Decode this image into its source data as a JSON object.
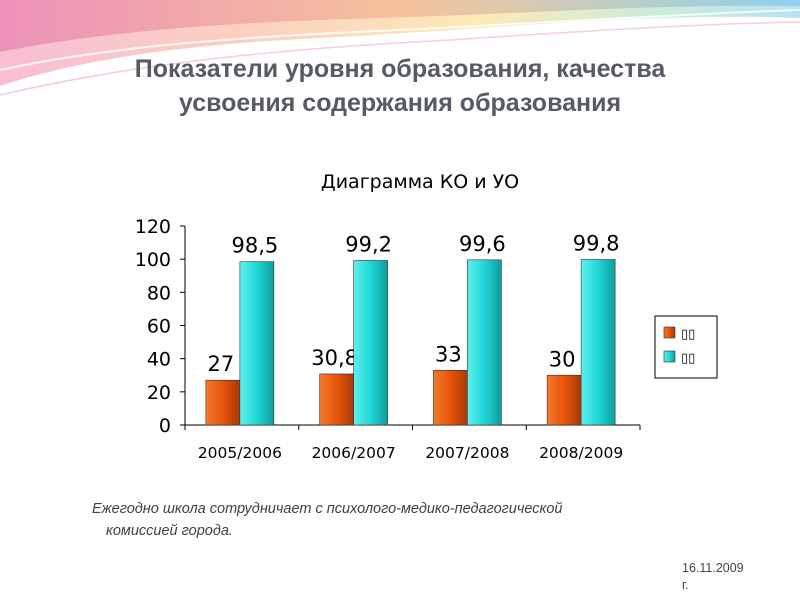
{
  "slide": {
    "title_line1": "Показатели уровня образования, качества",
    "title_line2": "усвоения содержания образования",
    "footnote_line1": "Ежегодно школа сотрудничает с психолого-медико-педагогической",
    "footnote_line2": "комиссией города.",
    "date_line1": "16.11.2009",
    "date_line2": "г."
  },
  "chart_data": {
    "type": "bar",
    "title": "Диаграмма КО и УО",
    "categories": [
      "2005/2006",
      "2006/2007",
      "2007/2008",
      "2008/2009"
    ],
    "series": [
      {
        "values": [
          27,
          30.8,
          33,
          30
        ],
        "labels": [
          "27",
          "30,8",
          "33",
          "30"
        ],
        "color": "#e8540c"
      },
      {
        "values": [
          98.5,
          99.2,
          99.6,
          99.8
        ],
        "labels": [
          "98,5",
          "99,2",
          "99,6",
          "99,8"
        ],
        "color": "#1fd6d6"
      }
    ],
    "legend_entries": [
      "▯▯",
      "▯▯"
    ],
    "ylim": [
      0,
      120
    ],
    "yticks": [
      0,
      20,
      40,
      60,
      80,
      100,
      120
    ],
    "legend_position": "right",
    "grid": false
  }
}
